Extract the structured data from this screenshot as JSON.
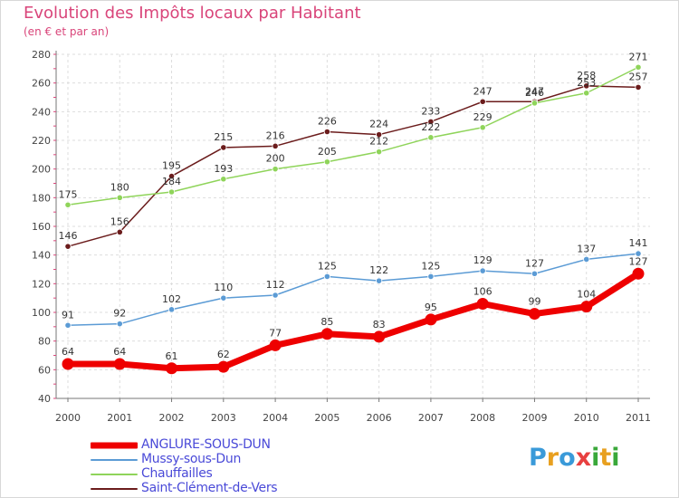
{
  "title": "Evolution des Impôts locaux par Habitant",
  "subtitle": "(en € et par an)",
  "logo": {
    "text": "Proxiti",
    "letters": [
      {
        "ch": "P",
        "color": "#3a9ad9"
      },
      {
        "ch": "r",
        "color": "#e8a020"
      },
      {
        "ch": "o",
        "color": "#3a9ad9"
      },
      {
        "ch": "x",
        "color": "#e84040"
      },
      {
        "ch": "i",
        "color": "#3aa83a"
      },
      {
        "ch": "t",
        "color": "#e8a020"
      },
      {
        "ch": "i",
        "color": "#3aa83a"
      }
    ]
  },
  "chart_data": {
    "type": "line",
    "title": "Evolution des Impôts locaux par Habitant",
    "subtitle": "(en € et par an)",
    "xlabel": "",
    "ylabel": "",
    "ylim": [
      40,
      280
    ],
    "yticks": [
      40,
      60,
      80,
      100,
      120,
      140,
      160,
      180,
      200,
      220,
      240,
      260,
      280
    ],
    "x": [
      "2000",
      "2001",
      "2002",
      "2003",
      "2004",
      "2005",
      "2006",
      "2007",
      "2008",
      "2009",
      "2010",
      "2011"
    ],
    "grid": true,
    "legend_position": "bottom-left",
    "series": [
      {
        "name": "Saint-Clément-de-Vers",
        "color": "#6b1c1c",
        "values": [
          146,
          156,
          195,
          215,
          216,
          226,
          224,
          233,
          247,
          247,
          258,
          257
        ]
      },
      {
        "name": "Chauffailles",
        "color": "#8fd45a",
        "values": [
          175,
          180,
          184,
          193,
          200,
          205,
          212,
          222,
          229,
          246,
          253,
          271
        ]
      },
      {
        "name": "Mussy-sous-Dun",
        "color": "#5b9bd5",
        "values": [
          91,
          92,
          102,
          110,
          112,
          125,
          122,
          125,
          129,
          127,
          137,
          141
        ]
      },
      {
        "name": "ANGLURE-SOUS-DUN",
        "color": "#ee0000",
        "values": [
          64,
          64,
          61,
          62,
          77,
          85,
          83,
          95,
          106,
          99,
          104,
          127
        ]
      }
    ]
  },
  "legend": [
    {
      "label": "ANGLURE-SOUS-DUN",
      "color": "#ee0000",
      "thickness": 7
    },
    {
      "label": "Mussy-sous-Dun",
      "color": "#5b9bd5",
      "thickness": 2
    },
    {
      "label": "Chauffailles",
      "color": "#8fd45a",
      "thickness": 2
    },
    {
      "label": "Saint-Clément-de-Vers",
      "color": "#6b1c1c",
      "thickness": 2
    }
  ]
}
